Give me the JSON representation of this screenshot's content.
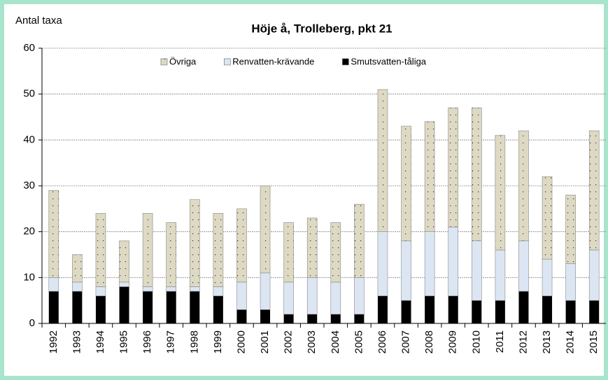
{
  "chart_data": {
    "type": "stacked-bar",
    "title": "Höje å, Trolleberg, pkt 21",
    "ylabel": "Antal taxa",
    "categories": [
      "1992",
      "1993",
      "1994",
      "1995",
      "1996",
      "1997",
      "1998",
      "1999",
      "2000",
      "2001",
      "2002",
      "2003",
      "2004",
      "2005",
      "2006",
      "2007",
      "2008",
      "2009",
      "2010",
      "2011",
      "2012",
      "2013",
      "2014",
      "2015"
    ],
    "series": [
      {
        "name": "Smutsvatten-tåliga",
        "color": "#000000",
        "values": [
          7,
          7,
          6,
          8,
          7,
          7,
          7,
          6,
          3,
          3,
          2,
          2,
          2,
          2,
          6,
          5,
          6,
          6,
          5,
          5,
          7,
          6,
          5,
          5
        ]
      },
      {
        "name": "Renvatten-krävande",
        "color": "#dce6f2",
        "values": [
          3,
          2,
          2,
          1,
          1,
          1,
          1,
          2,
          6,
          8,
          7,
          8,
          7,
          8,
          14,
          13,
          14,
          15,
          13,
          11,
          11,
          8,
          8,
          11
        ]
      },
      {
        "name": "Övriga",
        "color": "#ddd9c3",
        "values": [
          19,
          6,
          16,
          9,
          16,
          14,
          19,
          16,
          16,
          19,
          13,
          13,
          13,
          16,
          31,
          25,
          24,
          26,
          29,
          25,
          24,
          18,
          15,
          26
        ]
      }
    ],
    "ylim": [
      0,
      60
    ],
    "yticks": [
      0,
      10,
      20,
      30,
      40,
      50,
      60
    ],
    "grid": true,
    "legend": "top"
  }
}
